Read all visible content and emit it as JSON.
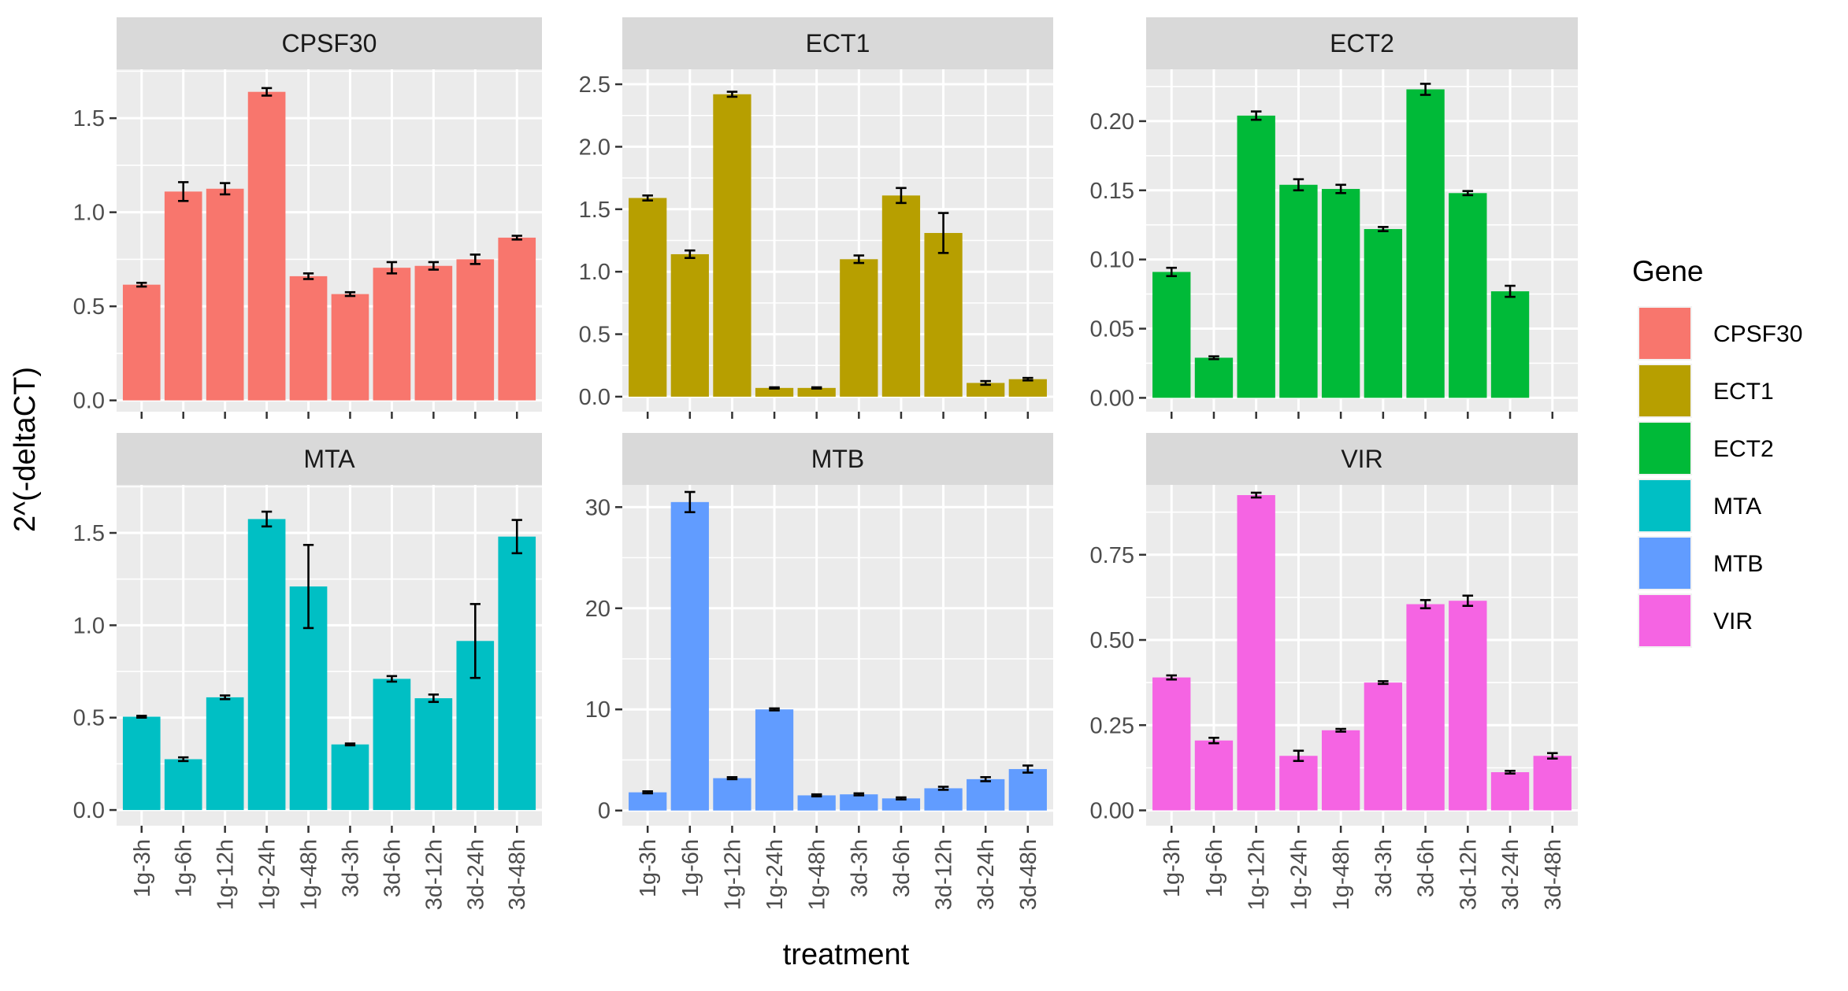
{
  "chart_data": {
    "type": "bar",
    "xlabel": "treatment",
    "ylabel": "2^(-deltaCT)",
    "categories": [
      "1g-3h",
      "1g-6h",
      "1g-12h",
      "1g-24h",
      "1g-48h",
      "3d-3h",
      "3d-6h",
      "3d-12h",
      "3d-24h",
      "3d-48h"
    ],
    "legend": {
      "title": "Gene",
      "placement": "right",
      "items": [
        {
          "label": "CPSF30",
          "color": "#F8766D"
        },
        {
          "label": "ECT1",
          "color": "#B79F00"
        },
        {
          "label": "ECT2",
          "color": "#00BA38"
        },
        {
          "label": "MTA",
          "color": "#00BFC4"
        },
        {
          "label": "MTB",
          "color": "#619CFF"
        },
        {
          "label": "VIR",
          "color": "#F564E3"
        }
      ]
    },
    "grid": true,
    "facets": [
      {
        "name": "CPSF30",
        "color": "#F8766D",
        "ylim": [
          -0.06,
          1.76
        ],
        "yticks": [
          0.0,
          0.5,
          1.0,
          1.5
        ],
        "ytick_labels": [
          "0.0",
          "0.5",
          "1.0",
          "1.5"
        ],
        "values": [
          0.615,
          1.11,
          1.125,
          1.64,
          0.66,
          0.565,
          0.705,
          0.715,
          0.75,
          0.865
        ],
        "errors": [
          0.01,
          0.05,
          0.03,
          0.02,
          0.015,
          0.01,
          0.03,
          0.02,
          0.025,
          0.01
        ]
      },
      {
        "name": "ECT1",
        "color": "#B79F00",
        "ylim": [
          -0.12,
          2.62
        ],
        "yticks": [
          0.0,
          0.5,
          1.0,
          1.5,
          2.0,
          2.5
        ],
        "ytick_labels": [
          "0.0",
          "0.5",
          "1.0",
          "1.5",
          "2.0",
          "2.5"
        ],
        "values": [
          1.59,
          1.14,
          2.42,
          0.07,
          0.07,
          1.1,
          1.61,
          1.31,
          0.11,
          0.14
        ],
        "errors": [
          0.02,
          0.03,
          0.02,
          0.005,
          0.005,
          0.03,
          0.06,
          0.16,
          0.015,
          0.01
        ]
      },
      {
        "name": "ECT2",
        "color": "#00BA38",
        "ylim": [
          -0.01,
          0.2375
        ],
        "yticks": [
          0.0,
          0.05,
          0.1,
          0.15,
          0.2
        ],
        "ytick_labels": [
          "0.00",
          "0.05",
          "0.10",
          "0.15",
          "0.20"
        ],
        "values": [
          0.091,
          0.029,
          0.204,
          0.154,
          0.151,
          0.122,
          0.223,
          0.148,
          0.077,
          null
        ],
        "errors": [
          0.003,
          0.001,
          0.003,
          0.004,
          0.003,
          0.0015,
          0.004,
          0.0015,
          0.004,
          null
        ]
      },
      {
        "name": "MTA",
        "color": "#00BFC4",
        "ylim": [
          -0.085,
          1.76
        ],
        "yticks": [
          0.0,
          0.5,
          1.0,
          1.5
        ],
        "ytick_labels": [
          "0.0",
          "0.5",
          "1.0",
          "1.5"
        ],
        "values": [
          0.505,
          0.275,
          0.61,
          1.575,
          1.21,
          0.355,
          0.71,
          0.605,
          0.915,
          1.48
        ],
        "errors": [
          0.005,
          0.01,
          0.01,
          0.04,
          0.225,
          0.005,
          0.015,
          0.02,
          0.2,
          0.09
        ]
      },
      {
        "name": "MTB",
        "color": "#619CFF",
        "ylim": [
          -1.5,
          32.2
        ],
        "yticks": [
          0,
          10,
          20,
          30
        ],
        "ytick_labels": [
          "0",
          "10",
          "20",
          "30"
        ],
        "values": [
          1.8,
          30.5,
          3.2,
          10.0,
          1.5,
          1.6,
          1.2,
          2.2,
          3.1,
          4.1
        ],
        "errors": [
          0.1,
          1.0,
          0.1,
          0.1,
          0.1,
          0.1,
          0.1,
          0.15,
          0.2,
          0.35
        ]
      },
      {
        "name": "VIR",
        "color": "#F564E3",
        "ylim": [
          -0.045,
          0.955
        ],
        "yticks": [
          0.0,
          0.25,
          0.5,
          0.75
        ],
        "ytick_labels": [
          "0.00",
          "0.25",
          "0.50",
          "0.75"
        ],
        "values": [
          0.39,
          0.205,
          0.925,
          0.16,
          0.235,
          0.375,
          0.605,
          0.615,
          0.112,
          0.16
        ],
        "errors": [
          0.006,
          0.008,
          0.007,
          0.015,
          0.004,
          0.004,
          0.012,
          0.015,
          0.004,
          0.008
        ]
      }
    ]
  }
}
